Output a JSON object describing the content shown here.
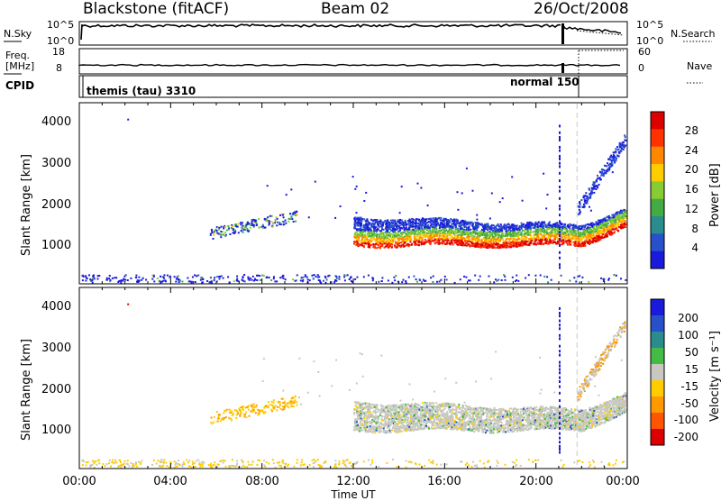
{
  "header": {
    "station": "Blackstone (fitACF)",
    "beam": "Beam 02",
    "date": "26/Oct/2008"
  },
  "summary": {
    "nsky_label": "N.Sky",
    "freq_label_line1": "Freq.",
    "freq_label_line2": "[MHz]",
    "cpid_label": "CPID",
    "nsearch_label": "N.Search",
    "nave_label": "Nave",
    "noise_ticks_left": [
      "10^5",
      "10^0"
    ],
    "noise_ticks_right": [
      "10^5",
      "10^0"
    ],
    "freq_ticks": [
      "18",
      "8"
    ],
    "nave_ticks": [
      "60",
      "0"
    ],
    "cpid_entries": [
      "themis (tau) 3310",
      "normal 150"
    ]
  },
  "chart_data": [
    {
      "type": "heatmap",
      "title": "",
      "xlabel": "",
      "ylabel": "Slant Range [km]",
      "xlim_hours": [
        0,
        24
      ],
      "ylim_km": [
        180,
        4500
      ],
      "y_ticks": [
        "4000",
        "3000",
        "2000",
        "1000"
      ],
      "colorbar_label": "Power [dB]",
      "colorbar_ticks": [
        "28",
        "24",
        "20",
        "16",
        "12",
        "8",
        "4"
      ],
      "colorbar_range": [
        0,
        30
      ],
      "colors": [
        "#1a1adc",
        "#2850c8",
        "#2a8c8c",
        "#44aa44",
        "#88cc33",
        "#ffcc00",
        "#ff8800",
        "#ff3300",
        "#dd0000"
      ]
    },
    {
      "type": "heatmap",
      "title": "",
      "xlabel": "Time UT",
      "ylabel": "Slant Range [km]",
      "xlim_hours": [
        0,
        24
      ],
      "ylim_km": [
        180,
        4500
      ],
      "y_ticks": [
        "4000",
        "3000",
        "2000",
        "1000"
      ],
      "x_ticks": [
        "00:00",
        "04:00",
        "08:00",
        "12:00",
        "16:00",
        "20:00",
        "00:00"
      ],
      "colorbar_label": "Velocity [m s⁻¹]",
      "colorbar_ticks": [
        "200",
        "100",
        "50",
        "15",
        "-15",
        "-50",
        "-100",
        "-200"
      ],
      "colors": [
        "#1a1adc",
        "#2850c8",
        "#2a8c8c",
        "#44bb44",
        "#c8c8c0",
        "#ffcc00",
        "#ff9900",
        "#ff5500",
        "#dd0000"
      ]
    }
  ]
}
